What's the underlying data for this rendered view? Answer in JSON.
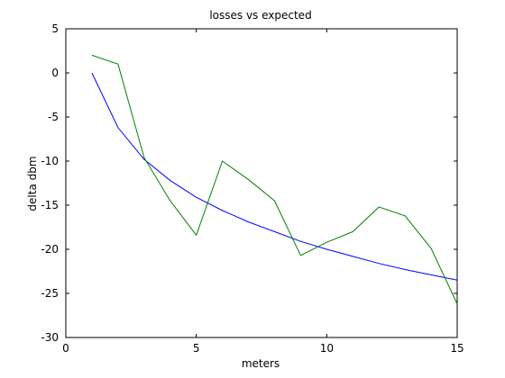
{
  "chart_data": {
    "type": "line",
    "title": "losses vs expected",
    "xlabel": "meters",
    "ylabel": "delta dbm",
    "xlim": [
      0,
      15
    ],
    "ylim": [
      -30,
      5
    ],
    "xticks": [
      0,
      5,
      10,
      15
    ],
    "yticks": [
      5,
      0,
      -5,
      -10,
      -15,
      -20,
      -25,
      -30
    ],
    "grid": false,
    "legend": "none",
    "series": [
      {
        "color": "#0000ff",
        "x": [
          1,
          2,
          3,
          4,
          5,
          6,
          7,
          8,
          9,
          10,
          11,
          12,
          13,
          14,
          15
        ],
        "y": [
          0,
          -6.2,
          -9.8,
          -12.2,
          -14.1,
          -15.6,
          -16.9,
          -18.0,
          -19.1,
          -20.0,
          -20.8,
          -21.6,
          -22.3,
          -22.9,
          -23.5
        ]
      },
      {
        "color": "#008000",
        "x": [
          1,
          2,
          3,
          4,
          5,
          6,
          7,
          8,
          9,
          10,
          11,
          12,
          13,
          14,
          15
        ],
        "y": [
          2.0,
          1.0,
          -9.6,
          -14.5,
          -18.4,
          -10.0,
          -12.1,
          -14.5,
          -20.7,
          -19.2,
          -18.0,
          -15.2,
          -16.2,
          -19.9,
          -26.2
        ]
      }
    ]
  }
}
